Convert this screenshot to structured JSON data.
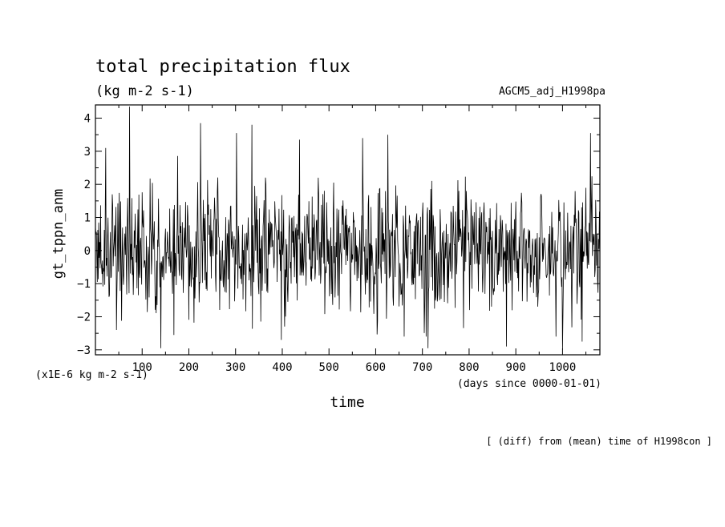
{
  "header": {
    "title": "total precipitation flux",
    "units": "(kg m-2 s-1)",
    "dataset": "AGCM5_adj_H1998pa"
  },
  "axes": {
    "ylabel": "gt_tppn_anm",
    "xlabel": "time",
    "y_scale_note": "(x1E-6 kg m-2 s-1)",
    "x_unit_note": "(days since 0000-01-01)"
  },
  "footer": {
    "note": "[ (diff) from (mean) time of H1998con ]"
  },
  "chart_data": {
    "type": "line",
    "title": "total precipitation flux",
    "subtitle": "(kg m-2 s-1)",
    "xlabel": "time",
    "ylabel": "gt_tppn_anm",
    "xlim": [
      0,
      1080
    ],
    "ylim": [
      -3.15,
      4.4
    ],
    "x_ticks": [
      100,
      200,
      300,
      400,
      500,
      600,
      700,
      800,
      900,
      1000
    ],
    "x_tick_labels": [
      "100",
      "200",
      "300",
      "400",
      "500",
      "600",
      "700",
      "800",
      "900",
      "1000"
    ],
    "y_ticks": [
      -3,
      -2,
      -1,
      0,
      1,
      2,
      3,
      4
    ],
    "y_tick_labels": [
      "−3",
      "−2",
      "−1",
      "0",
      "1",
      "2",
      "3",
      "4"
    ],
    "grid": false,
    "series": [
      {
        "color": "#000000",
        "sample_interval_days": 1,
        "seed": 1998,
        "approx_std": 1.05,
        "spikes": [
          {
            "x": 73,
            "y": 4.35
          },
          {
            "x": 22,
            "y": 3.1
          },
          {
            "x": 225,
            "y": 3.85
          },
          {
            "x": 335,
            "y": 3.8
          },
          {
            "x": 302,
            "y": 3.55
          },
          {
            "x": 1060,
            "y": 3.55
          },
          {
            "x": 626,
            "y": 3.5
          },
          {
            "x": 572,
            "y": 3.4
          },
          {
            "x": 437,
            "y": 3.35
          },
          {
            "x": 140,
            "y": -2.95
          },
          {
            "x": 712,
            "y": -2.95
          },
          {
            "x": 880,
            "y": -2.9
          },
          {
            "x": 1000,
            "y": -3.0
          },
          {
            "x": 398,
            "y": -2.7
          },
          {
            "x": 45,
            "y": -2.4
          },
          {
            "x": 168,
            "y": -2.55
          },
          {
            "x": 1042,
            "y": -2.75
          }
        ]
      }
    ]
  }
}
